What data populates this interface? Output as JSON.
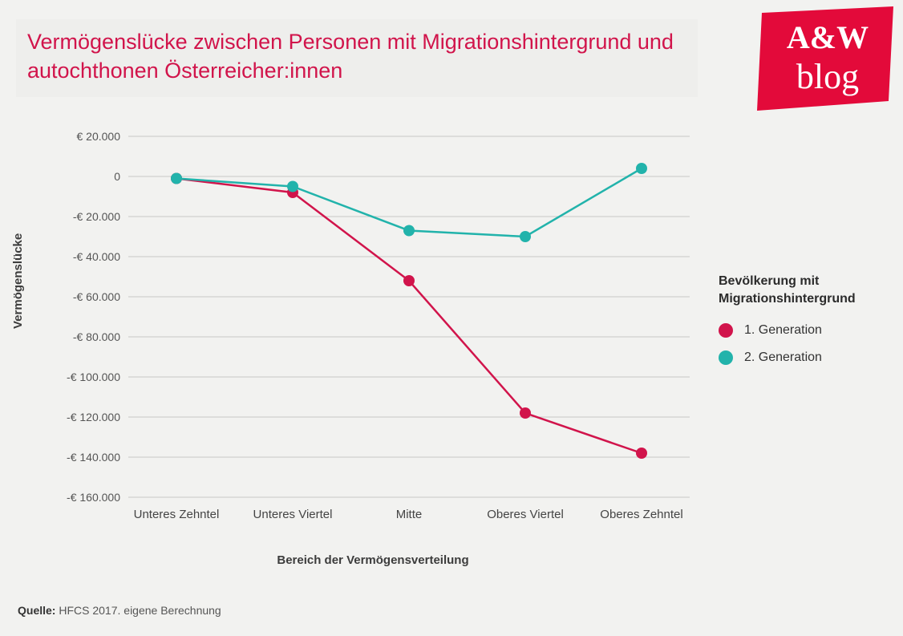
{
  "title": "Vermögenslücke zwischen Personen mit Migrationshintergrund und autochthonen Österreicher:innen",
  "title_color": "#d1144b",
  "logo": {
    "top": "A&W",
    "bottom": "blog",
    "bg": "#e30a3a",
    "fg": "#ffffff"
  },
  "chart": {
    "type": "line",
    "background_color": "#f2f2f0",
    "grid_color": "#c8c8c6",
    "axis_color": "#b8b8b6",
    "ylabel": "Vermögenslücke",
    "xlabel": "Bereich der Vermögensverteilung",
    "ylim": [
      -160000,
      20000
    ],
    "ytick_step": 20000,
    "ytick_labels": [
      "€ 20.000",
      "0",
      "-€ 20.000",
      "-€ 40.000",
      "-€ 60.000",
      "-€ 80.000",
      "-€ 100.000",
      "-€ 120.000",
      "-€ 140.000",
      "-€ 160.000"
    ],
    "categories": [
      "Unteres Zehntel",
      "Unteres Viertel",
      "Mitte",
      "Oberes Viertel",
      "Oberes Zehntel"
    ],
    "series": [
      {
        "name": "1. Generation",
        "color": "#d1144b",
        "marker": "circle",
        "marker_size": 7,
        "line_width": 2.5,
        "values": [
          -1000,
          -8000,
          -52000,
          -118000,
          -138000
        ]
      },
      {
        "name": "2. Generation",
        "color": "#22b3ab",
        "marker": "circle",
        "marker_size": 7,
        "line_width": 2.5,
        "values": [
          -1000,
          -5000,
          -27000,
          -30000,
          4000
        ]
      }
    ],
    "label_fontsize": 15,
    "tick_fontsize": 14
  },
  "legend": {
    "title": "Bevölkerung mit Migrationshintergrund",
    "items": [
      "1. Generation",
      "2. Generation"
    ]
  },
  "source": {
    "label": "Quelle:",
    "text": "HFCS 2017. eigene Berechnung"
  }
}
